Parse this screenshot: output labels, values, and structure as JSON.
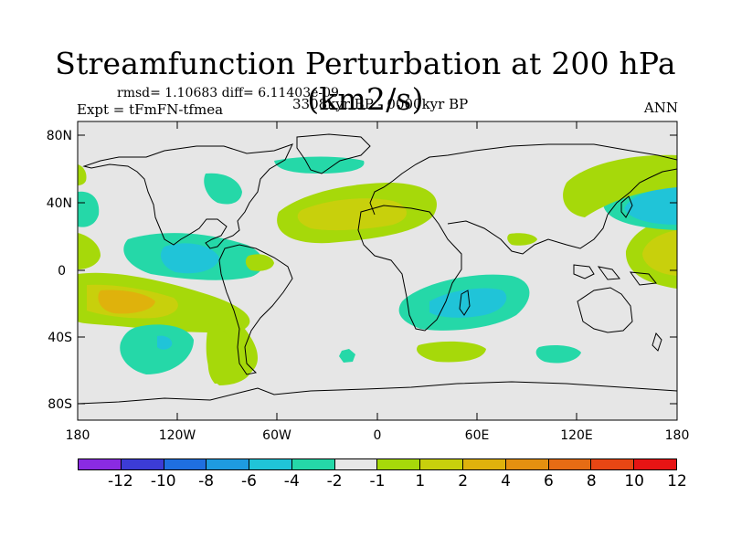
{
  "title": "Streamfunction Perturbation at 200 hPa (km2/s)",
  "rmsd_text": "rmsd= 1.10683 diff= 6.11403e-09",
  "expt_text": "Expt = tFmFN-tfmea",
  "center_text": "3308kyr BP - 0000kyr BP",
  "season": "ANN",
  "lat_labels": [
    "80N",
    "40N",
    "0",
    "40S",
    "80S"
  ],
  "lon_labels": [
    "180",
    "120W",
    "60W",
    "0",
    "60E",
    "120E",
    "180"
  ],
  "colorbar": {
    "colors": [
      "#8a2be2",
      "#3c3cd6",
      "#1f6fe0",
      "#1e9be0",
      "#20c4d8",
      "#25d8a8",
      "#e6e6e6",
      "#a6d90a",
      "#c8d00c",
      "#dfb20c",
      "#e49010",
      "#e66c14",
      "#e84614",
      "#e61414"
    ],
    "labels": [
      "-12",
      "-10",
      "-8",
      "-6",
      "-4",
      "-2",
      "-1",
      "1",
      "2",
      "4",
      "6",
      "8",
      "10",
      "12"
    ]
  }
}
